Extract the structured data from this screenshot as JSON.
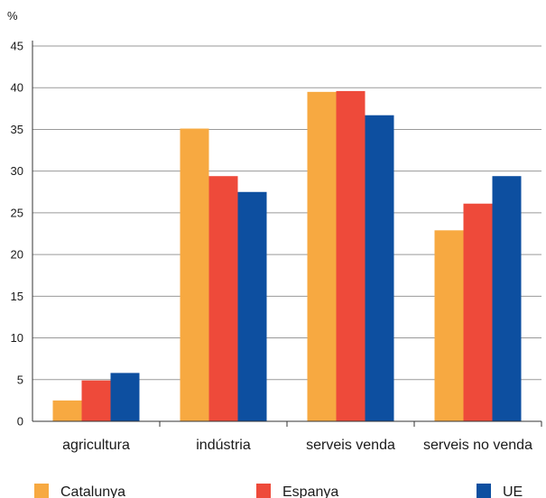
{
  "chart_data": {
    "type": "bar",
    "ylabel": "%",
    "ylim": [
      0,
      45
    ],
    "yticks": [
      0,
      5,
      10,
      15,
      20,
      25,
      30,
      35,
      40,
      45
    ],
    "grid": true,
    "legend_position": "bottom",
    "categories": [
      "agricultura",
      "indústria",
      "serveis venda",
      "serveis no venda"
    ],
    "series": [
      {
        "name": "Catalunya",
        "color": "#f7a941",
        "values": [
          2.5,
          35.1,
          39.5,
          22.9
        ]
      },
      {
        "name": "Espanya",
        "color": "#ee4a3a",
        "values": [
          4.9,
          29.4,
          39.6,
          26.1
        ]
      },
      {
        "name": "UE",
        "color": "#0d4fa0",
        "values": [
          5.8,
          27.5,
          36.7,
          29.4
        ]
      }
    ]
  }
}
